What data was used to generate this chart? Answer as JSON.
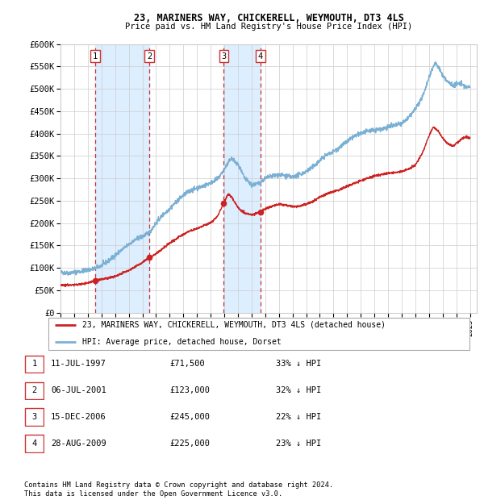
{
  "title1": "23, MARINERS WAY, CHICKERELL, WEYMOUTH, DT3 4LS",
  "title2": "Price paid vs. HM Land Registry's House Price Index (HPI)",
  "ylabel_ticks": [
    "£0",
    "£50K",
    "£100K",
    "£150K",
    "£200K",
    "£250K",
    "£300K",
    "£350K",
    "£400K",
    "£450K",
    "£500K",
    "£550K",
    "£600K"
  ],
  "ytick_values": [
    0,
    50000,
    100000,
    150000,
    200000,
    250000,
    300000,
    350000,
    400000,
    450000,
    500000,
    550000,
    600000
  ],
  "hpi_color": "#7ab0d4",
  "price_color": "#cc2222",
  "vline_color": "#cc3333",
  "shade_color": "#ddeeff",
  "background_color": "#ffffff",
  "grid_color": "#cccccc",
  "sales": [
    {
      "label": "1",
      "date_num": 1997.53,
      "price": 71500
    },
    {
      "label": "2",
      "date_num": 2001.51,
      "price": 123000
    },
    {
      "label": "3",
      "date_num": 2006.96,
      "price": 245000
    },
    {
      "label": "4",
      "date_num": 2009.66,
      "price": 225000
    }
  ],
  "legend_price_label": "23, MARINERS WAY, CHICKERELL, WEYMOUTH, DT3 4LS (detached house)",
  "legend_hpi_label": "HPI: Average price, detached house, Dorset",
  "footnote1": "Contains HM Land Registry data © Crown copyright and database right 2024.",
  "footnote2": "This data is licensed under the Open Government Licence v3.0.",
  "table_rows": [
    [
      "1",
      "11-JUL-1997",
      "£71,500",
      "33% ↓ HPI"
    ],
    [
      "2",
      "06-JUL-2001",
      "£123,000",
      "32% ↓ HPI"
    ],
    [
      "3",
      "15-DEC-2006",
      "£245,000",
      "22% ↓ HPI"
    ],
    [
      "4",
      "28-AUG-2009",
      "£225,000",
      "23% ↓ HPI"
    ]
  ],
  "xmin": 1995.0,
  "xmax": 2025.5,
  "ymin": 0,
  "ymax": 600000,
  "hpi_anchors": [
    [
      1995.0,
      90000
    ],
    [
      1995.5,
      88000
    ],
    [
      1996.0,
      90000
    ],
    [
      1996.5,
      92000
    ],
    [
      1997.0,
      95000
    ],
    [
      1997.5,
      98000
    ],
    [
      1998.0,
      105000
    ],
    [
      1998.5,
      115000
    ],
    [
      1999.0,
      128000
    ],
    [
      1999.5,
      140000
    ],
    [
      2000.0,
      152000
    ],
    [
      2000.5,
      163000
    ],
    [
      2001.0,
      170000
    ],
    [
      2001.5,
      178000
    ],
    [
      2002.0,
      200000
    ],
    [
      2002.5,
      218000
    ],
    [
      2003.0,
      232000
    ],
    [
      2003.5,
      248000
    ],
    [
      2004.0,
      262000
    ],
    [
      2004.5,
      272000
    ],
    [
      2005.0,
      278000
    ],
    [
      2005.5,
      283000
    ],
    [
      2006.0,
      290000
    ],
    [
      2006.5,
      298000
    ],
    [
      2007.0,
      320000
    ],
    [
      2007.5,
      345000
    ],
    [
      2008.0,
      330000
    ],
    [
      2008.5,
      300000
    ],
    [
      2009.0,
      285000
    ],
    [
      2009.5,
      288000
    ],
    [
      2010.0,
      300000
    ],
    [
      2010.5,
      305000
    ],
    [
      2011.0,
      308000
    ],
    [
      2011.5,
      305000
    ],
    [
      2012.0,
      302000
    ],
    [
      2012.5,
      308000
    ],
    [
      2013.0,
      315000
    ],
    [
      2013.5,
      325000
    ],
    [
      2014.0,
      340000
    ],
    [
      2014.5,
      352000
    ],
    [
      2015.0,
      360000
    ],
    [
      2015.5,
      370000
    ],
    [
      2016.0,
      382000
    ],
    [
      2016.5,
      393000
    ],
    [
      2017.0,
      400000
    ],
    [
      2017.5,
      405000
    ],
    [
      2018.0,
      408000
    ],
    [
      2018.5,
      410000
    ],
    [
      2019.0,
      415000
    ],
    [
      2019.5,
      418000
    ],
    [
      2020.0,
      422000
    ],
    [
      2020.5,
      435000
    ],
    [
      2021.0,
      455000
    ],
    [
      2021.5,
      480000
    ],
    [
      2022.0,
      525000
    ],
    [
      2022.3,
      550000
    ],
    [
      2022.5,
      558000
    ],
    [
      2022.7,
      548000
    ],
    [
      2023.0,
      530000
    ],
    [
      2023.3,
      518000
    ],
    [
      2023.5,
      512000
    ],
    [
      2023.8,
      508000
    ],
    [
      2024.0,
      510000
    ],
    [
      2024.3,
      512000
    ],
    [
      2024.5,
      508000
    ],
    [
      2024.8,
      503000
    ],
    [
      2025.0,
      505000
    ]
  ],
  "price_anchors": [
    [
      1995.0,
      62000
    ],
    [
      1995.5,
      61000
    ],
    [
      1996.0,
      62000
    ],
    [
      1996.5,
      63500
    ],
    [
      1997.0,
      66000
    ],
    [
      1997.53,
      71500
    ],
    [
      1998.0,
      74000
    ],
    [
      1998.5,
      77000
    ],
    [
      1999.0,
      81000
    ],
    [
      1999.5,
      87000
    ],
    [
      2000.0,
      94000
    ],
    [
      2000.5,
      103000
    ],
    [
      2001.0,
      112000
    ],
    [
      2001.51,
      123000
    ],
    [
      2002.0,
      131000
    ],
    [
      2002.5,
      143000
    ],
    [
      2003.0,
      155000
    ],
    [
      2003.5,
      165000
    ],
    [
      2004.0,
      175000
    ],
    [
      2004.5,
      182000
    ],
    [
      2005.0,
      188000
    ],
    [
      2005.5,
      194000
    ],
    [
      2006.0,
      200000
    ],
    [
      2006.5,
      215000
    ],
    [
      2006.96,
      245000
    ],
    [
      2007.3,
      265000
    ],
    [
      2007.6,
      255000
    ],
    [
      2008.0,
      235000
    ],
    [
      2008.5,
      222000
    ],
    [
      2009.0,
      218000
    ],
    [
      2009.66,
      225000
    ],
    [
      2010.0,
      232000
    ],
    [
      2010.5,
      238000
    ],
    [
      2011.0,
      242000
    ],
    [
      2011.5,
      240000
    ],
    [
      2012.0,
      237000
    ],
    [
      2012.5,
      238000
    ],
    [
      2013.0,
      242000
    ],
    [
      2013.5,
      248000
    ],
    [
      2014.0,
      258000
    ],
    [
      2014.5,
      265000
    ],
    [
      2015.0,
      270000
    ],
    [
      2015.5,
      275000
    ],
    [
      2016.0,
      282000
    ],
    [
      2016.5,
      288000
    ],
    [
      2017.0,
      295000
    ],
    [
      2017.5,
      300000
    ],
    [
      2018.0,
      305000
    ],
    [
      2018.5,
      308000
    ],
    [
      2019.0,
      311000
    ],
    [
      2019.5,
      313000
    ],
    [
      2020.0,
      315000
    ],
    [
      2020.5,
      320000
    ],
    [
      2021.0,
      330000
    ],
    [
      2021.5,
      355000
    ],
    [
      2022.0,
      395000
    ],
    [
      2022.3,
      415000
    ],
    [
      2022.5,
      410000
    ],
    [
      2022.7,
      405000
    ],
    [
      2023.0,
      390000
    ],
    [
      2023.3,
      380000
    ],
    [
      2023.5,
      375000
    ],
    [
      2023.8,
      372000
    ],
    [
      2024.0,
      378000
    ],
    [
      2024.3,
      385000
    ],
    [
      2024.5,
      390000
    ],
    [
      2024.8,
      392000
    ],
    [
      2025.0,
      390000
    ]
  ]
}
